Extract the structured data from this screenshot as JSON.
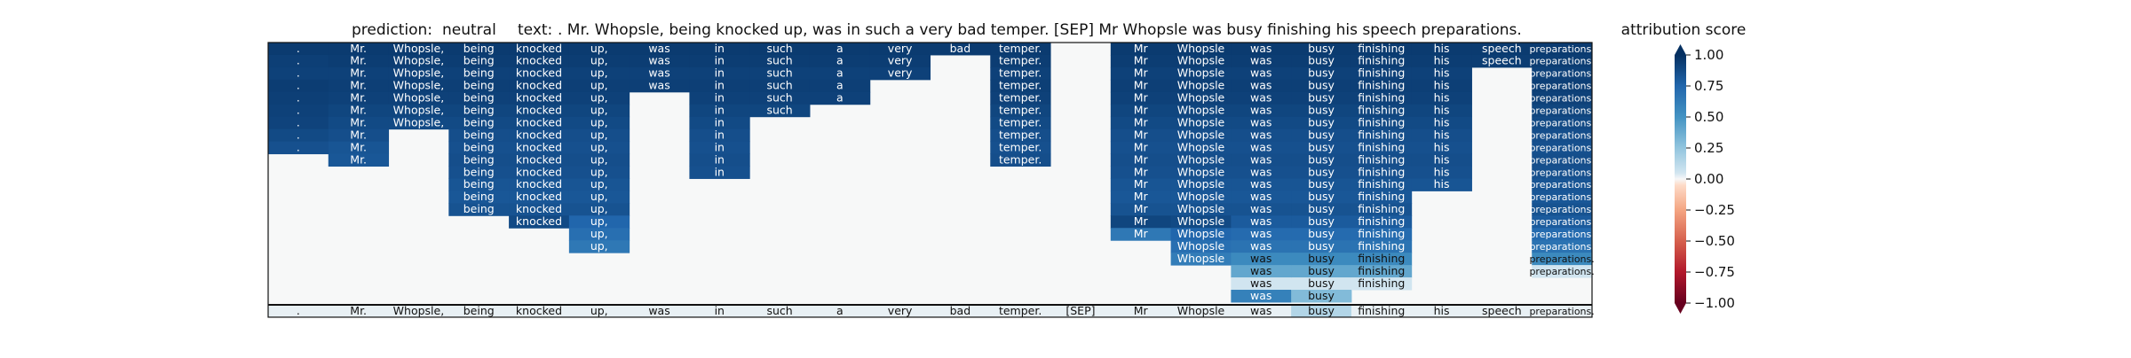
{
  "title": {
    "prediction_label": "prediction:",
    "prediction": "neutral",
    "text_label": "text:",
    "text": ". Mr. Whopsle, being knocked up, was in such a very bad temper. [SEP] Mr Whopsle was busy finishing his speech preparations."
  },
  "colorbar": {
    "title": "attribution score",
    "ticks": [
      "1.00",
      "0.75",
      "0.50",
      "0.25",
      "0.00",
      "−0.25",
      "−0.50",
      "−0.75",
      "−1.00"
    ],
    "colormap": "RdBu",
    "range": [
      -1,
      1
    ],
    "colors": {
      "strong_positive": "#08306b",
      "mid_positive": "#2166ac",
      "light_positive": "#92c5de",
      "neutral": "#f7f7f7",
      "negative": "#d6604d",
      "strong_negative": "#67001f"
    }
  },
  "chart_data": {
    "type": "heatmap",
    "tokens": [
      ".",
      "Mr.",
      "Whopsle,",
      "being",
      "knocked",
      "up,",
      "was",
      "in",
      "such",
      "a",
      "very",
      "bad",
      "temper.",
      "[SEP]",
      "Mr",
      "Whopsle",
      "was",
      "busy",
      "finishing",
      "his",
      "speech",
      "preparations."
    ],
    "columns": [
      {
        "scores": [
          0.95,
          0.93,
          0.92,
          0.94,
          0.93,
          0.92,
          0.91,
          0.88,
          0.85
        ]
      },
      {
        "scores": [
          0.95,
          0.94,
          0.92,
          0.93,
          0.92,
          0.9,
          0.88,
          0.86,
          0.83,
          0.82
        ]
      },
      {
        "scores": [
          0.95,
          0.94,
          0.92,
          0.93,
          0.92,
          0.9,
          0.88
        ]
      },
      {
        "scores": [
          0.95,
          0.94,
          0.92,
          0.93,
          0.92,
          0.9,
          0.88,
          0.86,
          0.85,
          0.86,
          0.85,
          0.83,
          0.82,
          0.84
        ]
      },
      {
        "scores": [
          0.95,
          0.94,
          0.92,
          0.93,
          0.92,
          0.9,
          0.88,
          0.86,
          0.85,
          0.86,
          0.85,
          0.83,
          0.82,
          0.84,
          0.88
        ]
      },
      {
        "scores": [
          0.95,
          0.94,
          0.92,
          0.93,
          0.92,
          0.9,
          0.88,
          0.86,
          0.85,
          0.86,
          0.85,
          0.83,
          0.82,
          0.84,
          0.75,
          0.7,
          0.65
        ]
      },
      {
        "scores": [
          0.95,
          0.94,
          0.92,
          0.93
        ]
      },
      {
        "scores": [
          0.95,
          0.94,
          0.92,
          0.93,
          0.92,
          0.9,
          0.88,
          0.86,
          0.85,
          0.86,
          0.85
        ]
      },
      {
        "scores": [
          0.95,
          0.94,
          0.92,
          0.93,
          0.92,
          0.9
        ]
      },
      {
        "scores": [
          0.95,
          0.94,
          0.92,
          0.93,
          0.92
        ]
      },
      {
        "scores": [
          0.95,
          0.94,
          0.92
        ]
      },
      {
        "scores": [
          0.95
        ]
      },
      {
        "scores": [
          0.95,
          0.94,
          0.92,
          0.93,
          0.92,
          0.9,
          0.88,
          0.86,
          0.85,
          0.86
        ]
      },
      {
        "scores": []
      },
      {
        "scores": [
          0.95,
          0.94,
          0.92,
          0.93,
          0.92,
          0.9,
          0.88,
          0.86,
          0.85,
          0.86,
          0.85,
          0.83,
          0.82,
          0.84,
          0.9,
          0.65
        ]
      },
      {
        "scores": [
          0.95,
          0.94,
          0.92,
          0.93,
          0.92,
          0.9,
          0.88,
          0.86,
          0.85,
          0.86,
          0.85,
          0.83,
          0.82,
          0.84,
          0.88,
          0.75,
          0.7,
          0.62
        ]
      },
      {
        "scores": [
          0.95,
          0.94,
          0.92,
          0.93,
          0.92,
          0.9,
          0.88,
          0.86,
          0.85,
          0.86,
          0.85,
          0.83,
          0.82,
          0.84,
          0.8,
          0.72,
          0.68,
          0.55,
          0.4,
          0.05,
          0.6
        ]
      },
      {
        "scores": [
          0.95,
          0.94,
          0.92,
          0.93,
          0.92,
          0.9,
          0.88,
          0.86,
          0.85,
          0.86,
          0.85,
          0.83,
          0.82,
          0.84,
          0.8,
          0.72,
          0.68,
          0.55,
          0.4,
          0.05,
          0.3
        ]
      },
      {
        "scores": [
          0.95,
          0.94,
          0.92,
          0.93,
          0.92,
          0.9,
          0.88,
          0.86,
          0.85,
          0.86,
          0.85,
          0.83,
          0.82,
          0.84,
          0.8,
          0.72,
          0.68,
          0.55,
          0.4,
          0.05
        ]
      },
      {
        "scores": [
          0.95,
          0.94,
          0.92,
          0.93,
          0.92,
          0.9,
          0.88,
          0.86,
          0.85,
          0.86,
          0.85,
          0.83
        ]
      },
      {
        "scores": [
          0.95,
          0.94
        ]
      },
      {
        "scores": [
          0.95,
          0.94,
          0.92,
          0.93,
          0.92,
          0.9,
          0.88,
          0.86,
          0.85,
          0.86,
          0.85,
          0.83,
          0.82,
          0.84,
          0.8,
          0.72,
          0.68,
          0.55,
          0.05
        ]
      }
    ],
    "bottom_row": [
      0.02,
      0.02,
      0.02,
      0.02,
      0.02,
      0.02,
      0.02,
      0.02,
      0.02,
      0.02,
      0.02,
      0.02,
      0.02,
      0.02,
      0.02,
      0.02,
      0.02,
      0.15,
      0.02,
      0.02,
      0.02,
      0.02
    ]
  }
}
